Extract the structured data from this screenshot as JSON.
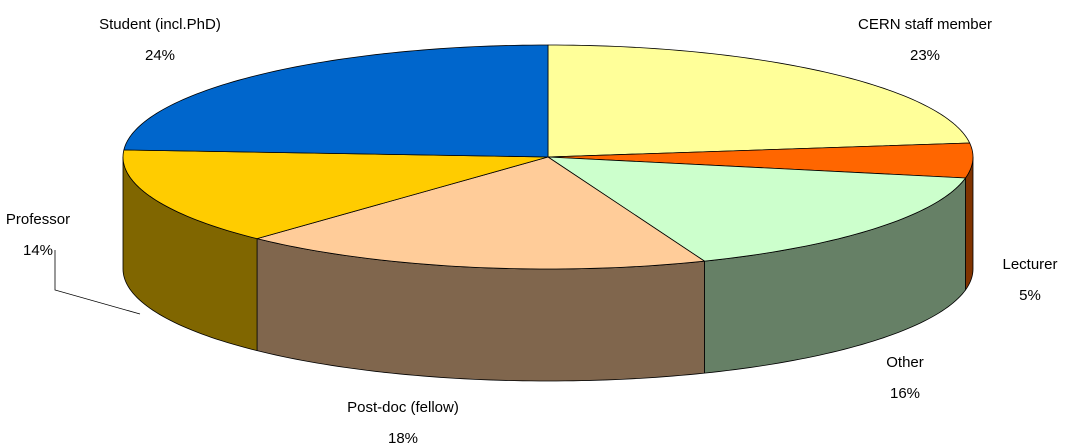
{
  "chart_data": {
    "type": "pie3d",
    "categories": [
      "CERN staff member",
      "Lecturer",
      "Other",
      "Post-doc (fellow)",
      "Professor",
      "Student (incl.PhD)"
    ],
    "values": [
      23,
      5,
      16,
      18,
      14,
      24
    ],
    "value_labels": [
      "23%",
      "5%",
      "16%",
      "18%",
      "14%",
      "24%"
    ],
    "colors": [
      "#FFFF99",
      "#FF6600",
      "#CCFFCC",
      "#FFCC99",
      "#FFCC00",
      "#0066CC"
    ]
  }
}
